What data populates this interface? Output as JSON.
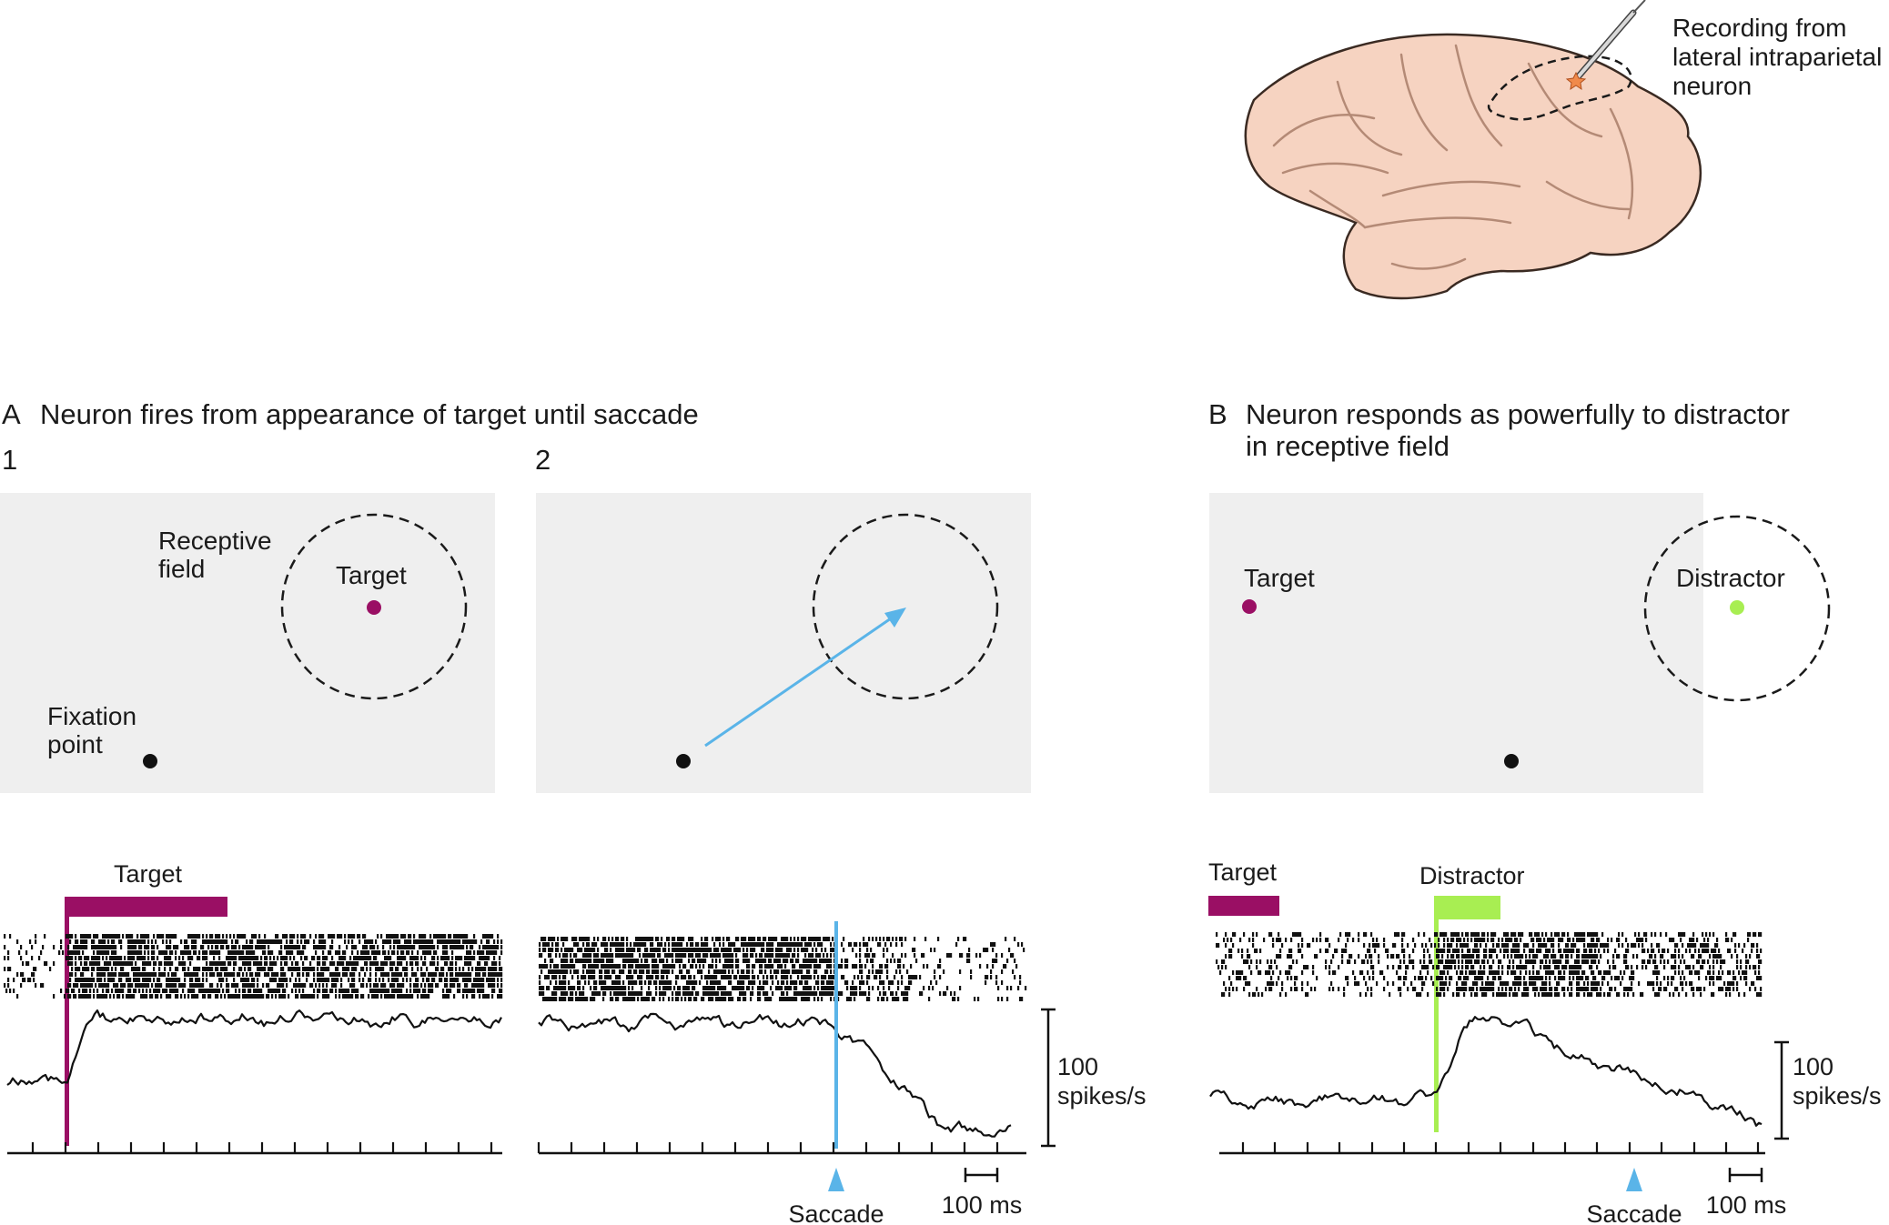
{
  "brain": {
    "label_lines": [
      "Recording from",
      "lateral intraparietal",
      "neuron"
    ]
  },
  "panel_a": {
    "letter": "A",
    "title": "Neuron fires from appearance of target until saccade",
    "sub1": "1",
    "sub2": "2",
    "rf_label_lines": [
      "Receptive",
      "field"
    ],
    "target_label": "Target",
    "fixation_label_lines": [
      "Fixation",
      "point"
    ],
    "bar_label": "Target",
    "saccade_label": "Saccade",
    "scale_rate_lines": [
      "100",
      "spikes/s"
    ],
    "scale_time": "100 ms"
  },
  "panel_b": {
    "letter": "B",
    "title_lines": [
      "Neuron responds as powerfully to distractor",
      "in receptive field"
    ],
    "target_label": "Target",
    "distractor_label": "Distractor",
    "bar_target_label": "Target",
    "bar_distractor_label": "Distractor",
    "saccade_label": "Saccade",
    "scale_rate_lines": [
      "100",
      "spikes/s"
    ],
    "scale_time": "100 ms"
  },
  "colors": {
    "target": "#9a0f64",
    "distractor": "#a8ee52",
    "saccade": "#5ab4e8",
    "stim_bg": "#efefef",
    "brain": "#f6d3c1",
    "brain_line": "#b48a76"
  }
}
